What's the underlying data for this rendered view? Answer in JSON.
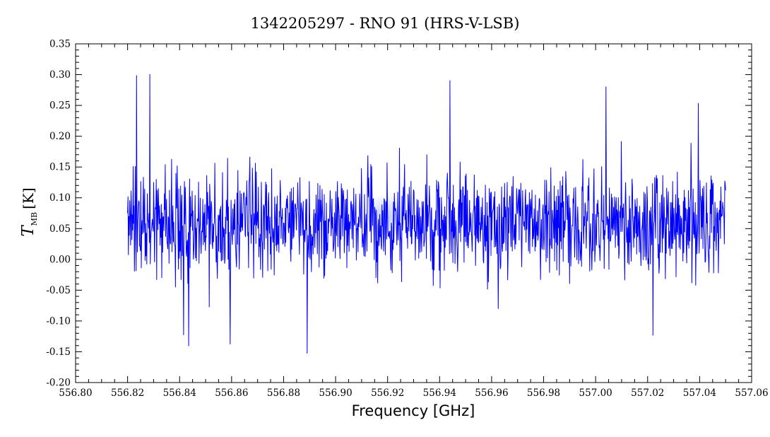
{
  "chart_data": {
    "type": "line",
    "title": "1342205297 - RNO 91 (HRS-V-LSB)",
    "xlabel": "Frequency [GHz]",
    "ylabel_main": "T",
    "ylabel_sub": "MB",
    "ylabel_unit": "[K]",
    "xlim": [
      556.8,
      557.06
    ],
    "ylim": [
      -0.2,
      0.35
    ],
    "x_ticks": [
      "556.80",
      "556.82",
      "556.84",
      "556.86",
      "556.88",
      "556.90",
      "556.92",
      "556.94",
      "556.96",
      "556.98",
      "557.00",
      "557.02",
      "557.04",
      "557.06"
    ],
    "y_ticks": [
      "-0.20",
      "-0.15",
      "-0.10",
      "-0.05",
      "0.00",
      "0.05",
      "0.10",
      "0.15",
      "0.20",
      "0.25",
      "0.30",
      "0.35"
    ],
    "grid": false,
    "legend": "none",
    "series": [
      {
        "color": "#0000ff",
        "x_start": 556.82,
        "x_end": 557.05,
        "n_points": 1400,
        "mean": 0.06,
        "min": -0.15,
        "max": 0.3,
        "note_points": [
          [
            556.8235,
            0.298
          ],
          [
            556.8285,
            0.3
          ],
          [
            556.8435,
            -0.14
          ],
          [
            556.8595,
            -0.137
          ],
          [
            556.889,
            -0.152
          ],
          [
            556.944,
            0.29
          ],
          [
            557.004,
            0.28
          ],
          [
            556.8415,
            -0.122
          ],
          [
            557.022,
            -0.123
          ],
          [
            557.0395,
            0.253
          ]
        ]
      }
    ]
  },
  "colors": {
    "series": "#0000ff",
    "frame": "#000000",
    "background": "#ffffff",
    "highlight": "#6a8ce8"
  }
}
